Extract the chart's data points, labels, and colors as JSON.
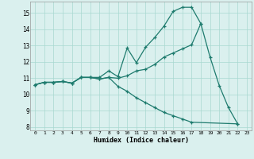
{
  "xlabel": "Humidex (Indice chaleur)",
  "xlim": [
    -0.5,
    23.5
  ],
  "ylim": [
    7.8,
    15.7
  ],
  "yticks": [
    8,
    9,
    10,
    11,
    12,
    13,
    14,
    15
  ],
  "xticks": [
    0,
    1,
    2,
    3,
    4,
    5,
    6,
    7,
    8,
    9,
    10,
    11,
    12,
    13,
    14,
    15,
    16,
    17,
    18,
    19,
    20,
    21,
    22,
    23
  ],
  "bg_color": "#daf0ee",
  "grid_color": "#a8d8d0",
  "line_color": "#1e7b6e",
  "line1_x": [
    0,
    1,
    2,
    3,
    4,
    5,
    6,
    7,
    8,
    9,
    10,
    11,
    12,
    13,
    14,
    15,
    16,
    17,
    18
  ],
  "line1_y": [
    10.6,
    10.75,
    10.75,
    10.8,
    10.7,
    11.05,
    11.05,
    11.05,
    11.45,
    11.1,
    12.85,
    11.95,
    12.9,
    13.5,
    14.2,
    15.1,
    15.35,
    15.35,
    14.35
  ],
  "line2_x": [
    0,
    1,
    2,
    3,
    4,
    5,
    6,
    7,
    8,
    9,
    10,
    11,
    12,
    13,
    14,
    15,
    16,
    17,
    18,
    19,
    20,
    21,
    22
  ],
  "line2_y": [
    10.6,
    10.75,
    10.75,
    10.8,
    10.7,
    11.05,
    11.05,
    10.95,
    11.05,
    11.0,
    11.15,
    11.45,
    11.55,
    11.85,
    12.3,
    12.55,
    12.8,
    13.05,
    14.35,
    12.3,
    10.55,
    9.2,
    8.2
  ],
  "line3_x": [
    0,
    1,
    2,
    3,
    4,
    5,
    6,
    7,
    8,
    9,
    10,
    11,
    12,
    13,
    14,
    15,
    16,
    17,
    22
  ],
  "line3_y": [
    10.6,
    10.75,
    10.75,
    10.8,
    10.7,
    11.05,
    11.05,
    10.95,
    11.05,
    10.5,
    10.2,
    9.8,
    9.5,
    9.2,
    8.9,
    8.7,
    8.5,
    8.3,
    8.2
  ]
}
